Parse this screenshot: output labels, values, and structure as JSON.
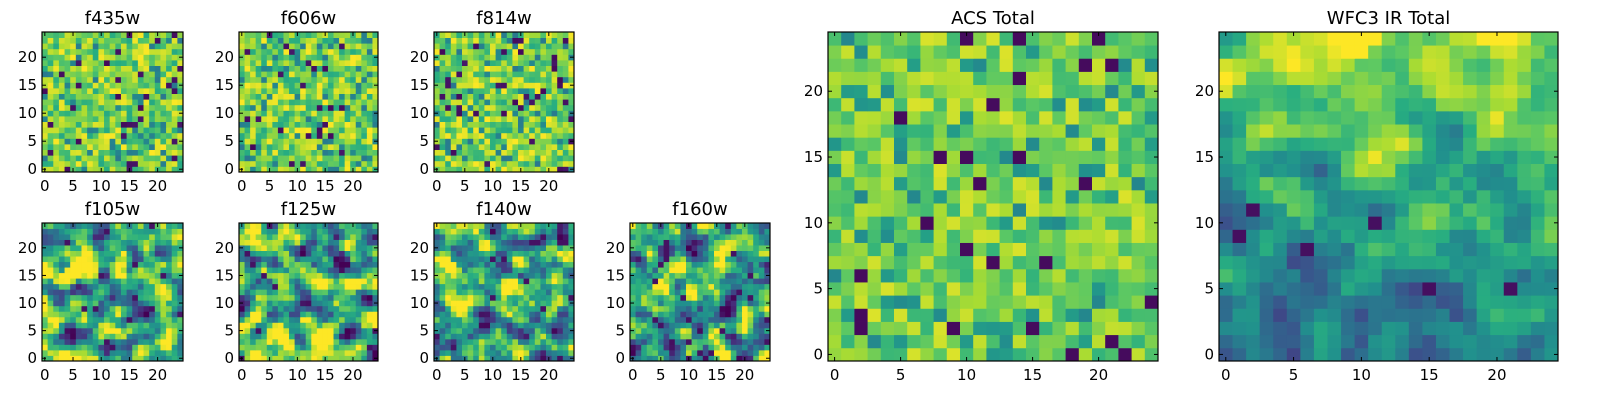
{
  "chart_data": [
    {
      "type": "heatmap",
      "title": "f435w",
      "xlim": [
        0,
        24
      ],
      "ylim": [
        0,
        24
      ],
      "xticks": [
        "0",
        "5",
        "10",
        "15",
        "20"
      ],
      "yticks": [
        "0",
        "5",
        "10",
        "15",
        "20"
      ],
      "colormap": "viridis",
      "grid": false
    },
    {
      "type": "heatmap",
      "title": "f606w",
      "xlim": [
        0,
        24
      ],
      "ylim": [
        0,
        24
      ],
      "xticks": [
        "0",
        "5",
        "10",
        "15",
        "20"
      ],
      "yticks": [
        "0",
        "5",
        "10",
        "15",
        "20"
      ],
      "colormap": "viridis",
      "grid": false
    },
    {
      "type": "heatmap",
      "title": "f814w",
      "xlim": [
        0,
        24
      ],
      "ylim": [
        0,
        24
      ],
      "xticks": [
        "0",
        "5",
        "10",
        "15",
        "20"
      ],
      "yticks": [
        "0",
        "5",
        "10",
        "15",
        "20"
      ],
      "colormap": "viridis",
      "grid": false
    },
    {
      "type": "heatmap",
      "title": "f105w",
      "xlim": [
        0,
        24
      ],
      "ylim": [
        0,
        24
      ],
      "xticks": [
        "0",
        "5",
        "10",
        "15",
        "20"
      ],
      "yticks": [
        "0",
        "5",
        "10",
        "15",
        "20"
      ],
      "colormap": "viridis",
      "grid": false
    },
    {
      "type": "heatmap",
      "title": "f125w",
      "xlim": [
        0,
        24
      ],
      "ylim": [
        0,
        24
      ],
      "xticks": [
        "0",
        "5",
        "10",
        "15",
        "20"
      ],
      "yticks": [
        "0",
        "5",
        "10",
        "15",
        "20"
      ],
      "colormap": "viridis",
      "grid": false
    },
    {
      "type": "heatmap",
      "title": "f140w",
      "xlim": [
        0,
        24
      ],
      "ylim": [
        0,
        24
      ],
      "xticks": [
        "0",
        "5",
        "10",
        "15",
        "20"
      ],
      "yticks": [
        "0",
        "5",
        "10",
        "15",
        "20"
      ],
      "colormap": "viridis",
      "grid": false
    },
    {
      "type": "heatmap",
      "title": "f160w",
      "xlim": [
        0,
        24
      ],
      "ylim": [
        0,
        24
      ],
      "xticks": [
        "0",
        "5",
        "10",
        "15",
        "20"
      ],
      "yticks": [
        "0",
        "5",
        "10",
        "15",
        "20"
      ],
      "colormap": "viridis",
      "grid": false
    },
    {
      "type": "heatmap",
      "title": "ACS Total",
      "xlim": [
        0,
        24
      ],
      "ylim": [
        0,
        24
      ],
      "xticks": [
        "0",
        "5",
        "10",
        "15",
        "20"
      ],
      "yticks": [
        "0",
        "5",
        "10",
        "15",
        "20"
      ],
      "colormap": "viridis",
      "grid": false
    },
    {
      "type": "heatmap",
      "title": "WFC3 IR Total",
      "xlim": [
        0,
        24
      ],
      "ylim": [
        0,
        24
      ],
      "xticks": [
        "0",
        "5",
        "10",
        "15",
        "20"
      ],
      "yticks": [
        "0",
        "5",
        "10",
        "15",
        "20"
      ],
      "colormap": "viridis",
      "grid": false
    }
  ]
}
